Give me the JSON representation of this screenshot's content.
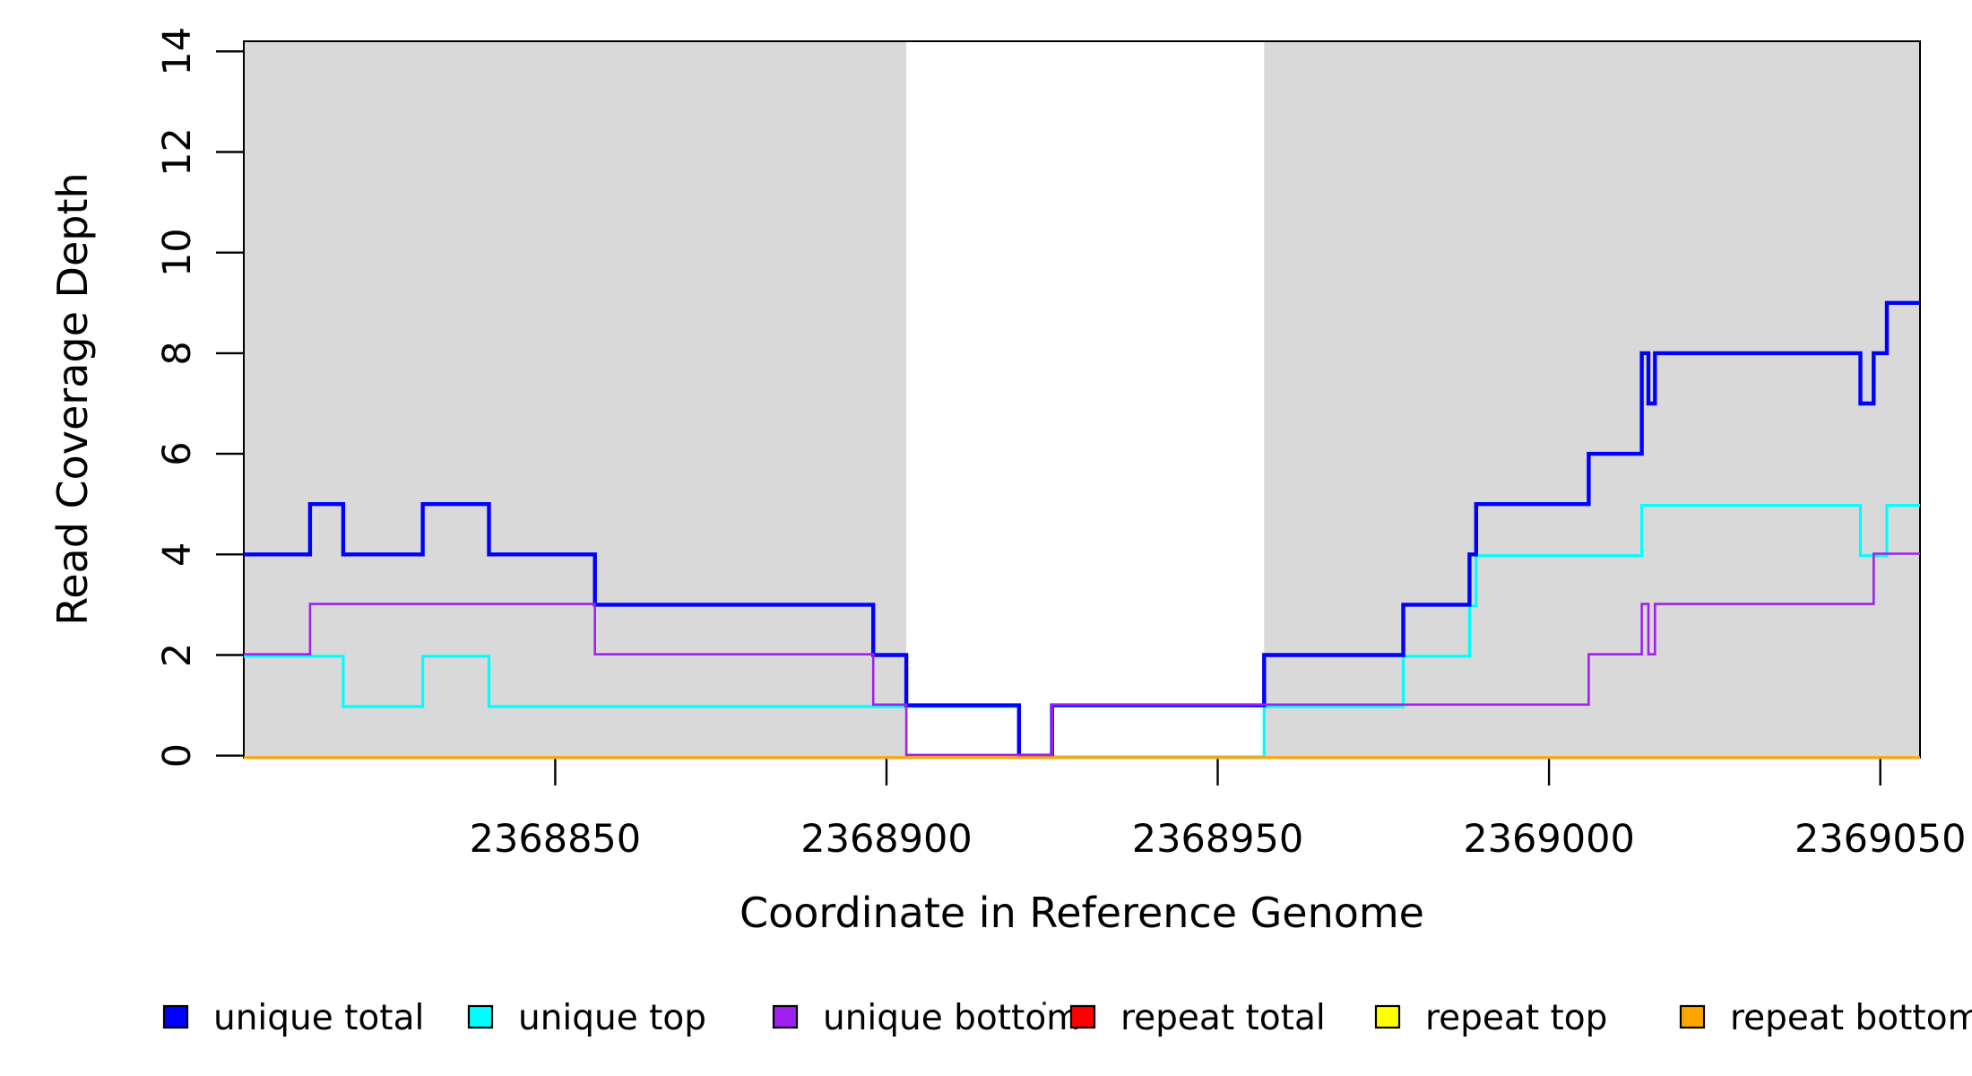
{
  "figure": {
    "xlabel": "Coordinate in Reference Genome",
    "ylabel": "Read Coverage Depth"
  },
  "chart_data": {
    "type": "line",
    "step": true,
    "title": "",
    "xlabel": "Coordinate in Reference Genome",
    "ylabel": "Read Coverage Depth",
    "xlim": [
      2368803,
      2369056
    ],
    "ylim": [
      0,
      14
    ],
    "x_ticks": [
      2368850,
      2368900,
      2368950,
      2369000,
      2369050
    ],
    "y_ticks": [
      0,
      2,
      4,
      6,
      8,
      10,
      12,
      14
    ],
    "grid": false,
    "legend_position": "bottom",
    "panel_background": "#ffffff",
    "shaded_regions": [
      {
        "name": "left-shaded-region",
        "x0": 2368803,
        "x1": 2368903,
        "color": "#D9D9D9"
      },
      {
        "name": "right-shaded-region",
        "x0": 2368957,
        "x1": 2369056,
        "color": "#D9D9D9"
      }
    ],
    "series": [
      {
        "name": "unique top",
        "color": "#00FFFF",
        "line_width": 3.2,
        "dy": 1.4,
        "start_value": 2,
        "steps": [
          [
            2368818,
            1
          ],
          [
            2368830,
            2
          ],
          [
            2368840,
            1
          ],
          [
            2368920,
            0
          ],
          [
            2368957,
            1
          ],
          [
            2368978,
            2
          ],
          [
            2368988,
            3
          ],
          [
            2368989,
            4
          ],
          [
            2369014,
            5
          ],
          [
            2369047,
            4
          ],
          [
            2369051,
            5
          ]
        ]
      },
      {
        "name": "unique total",
        "color": "#0000FF",
        "line_width": 4.4,
        "dy": 0,
        "start_value": 4,
        "steps": [
          [
            2368813,
            5
          ],
          [
            2368818,
            4
          ],
          [
            2368830,
            5
          ],
          [
            2368840,
            4
          ],
          [
            2368856,
            3
          ],
          [
            2368898,
            2
          ],
          [
            2368903,
            1
          ],
          [
            2368920,
            0
          ],
          [
            2368925,
            1
          ],
          [
            2368957,
            2
          ],
          [
            2368978,
            3
          ],
          [
            2368988,
            4
          ],
          [
            2368989,
            5
          ],
          [
            2369006,
            6
          ],
          [
            2369014,
            8
          ],
          [
            2369015,
            7
          ],
          [
            2369016,
            8
          ],
          [
            2369047,
            7
          ],
          [
            2369049,
            8
          ],
          [
            2369051,
            9
          ]
        ]
      },
      {
        "name": "unique bottom",
        "color": "#A020F0",
        "line_width": 2.6,
        "dy": -0.8,
        "start_value": 2,
        "steps": [
          [
            2368813,
            3
          ],
          [
            2368856,
            2
          ],
          [
            2368898,
            1
          ],
          [
            2368903,
            0
          ],
          [
            2368925,
            1
          ],
          [
            2369006,
            2
          ],
          [
            2369014,
            3
          ],
          [
            2369015,
            2
          ],
          [
            2369016,
            3
          ],
          [
            2369049,
            4
          ]
        ]
      },
      {
        "name": "repeat total",
        "color": "#FF0000",
        "line_width": 2.4,
        "dy": 2.2,
        "start_value": 0,
        "steps": []
      },
      {
        "name": "repeat top",
        "color": "#FFFF00",
        "line_width": 2.4,
        "dy": 2.2,
        "start_value": 0,
        "steps": []
      },
      {
        "name": "repeat bottom",
        "color": "#FFA500",
        "line_width": 3.2,
        "dy": 2.2,
        "start_value": 0,
        "steps": []
      }
    ],
    "legend": [
      {
        "label": "unique total",
        "color": "#0000FF"
      },
      {
        "label": "unique top",
        "color": "#00FFFF"
      },
      {
        "label": "unique bottom",
        "color": "#A020F0"
      },
      {
        "label": "repeat total",
        "color": "#FF0000"
      },
      {
        "label": "repeat top",
        "color": "#FFFF00"
      },
      {
        "label": "repeat bottom",
        "color": "#FFA500"
      }
    ],
    "artifact_dot": {
      "present": true
    }
  }
}
